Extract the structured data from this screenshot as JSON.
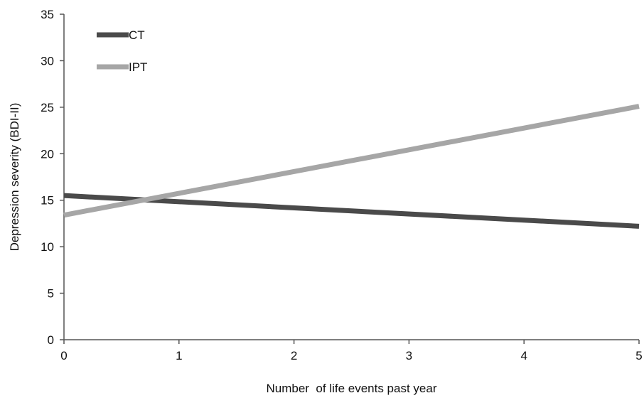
{
  "chart_data": {
    "type": "line",
    "title": "",
    "xlabel": "Number  of life events past year",
    "ylabel": "Depression severity (BDI-II)",
    "x": [
      0,
      1,
      2,
      3,
      4,
      5
    ],
    "xlim": [
      0,
      5
    ],
    "ylim": [
      0,
      35
    ],
    "xticks": [
      "0",
      "1",
      "2",
      "3",
      "4",
      "5"
    ],
    "yticks": [
      "0",
      "5",
      "10",
      "15",
      "20",
      "25",
      "30",
      "35"
    ],
    "grid": false,
    "legend_position": "top-left",
    "series": [
      {
        "name": "CT",
        "color": "#4a4a4a",
        "x": [
          0,
          5
        ],
        "values": [
          15.5,
          12.2
        ]
      },
      {
        "name": "IPT",
        "color": "#a6a6a6",
        "x": [
          0,
          5
        ],
        "values": [
          13.4,
          25.1
        ]
      }
    ]
  }
}
